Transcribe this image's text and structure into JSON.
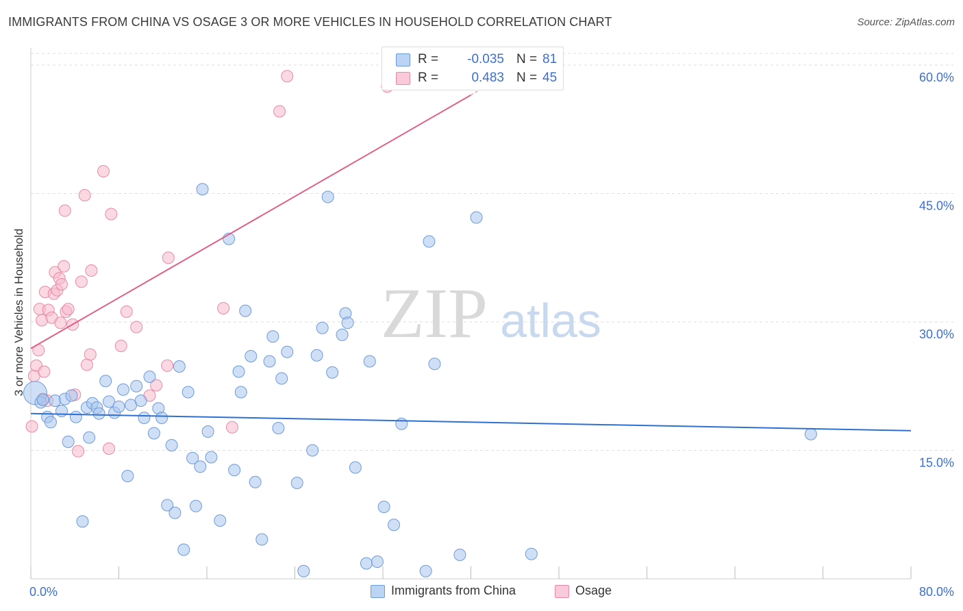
{
  "title": "IMMIGRANTS FROM CHINA VS OSAGE 3 OR MORE VEHICLES IN HOUSEHOLD CORRELATION CHART",
  "source": "Source: ZipAtlas.com",
  "watermark": {
    "zip": "ZIP",
    "atlas": "atlas"
  },
  "colors": {
    "blue_fill": "#a8c6ef",
    "blue_stroke": "#6f9ad8",
    "blue_line": "#2e6fd0",
    "pink_fill": "#f5b9cc",
    "pink_stroke": "#e98aa8",
    "pink_line": "#e0608a",
    "grid": "#dddddd",
    "tick_label": "#3b6fd0"
  },
  "legend": {
    "rows": [
      {
        "series": "Immigrants from China",
        "r_label": "R =",
        "r_value": "-0.035",
        "n_label": "N =",
        "n_value": "81"
      },
      {
        "series": "Osage",
        "r_label": "R =",
        "r_value": "0.483",
        "n_label": "N =",
        "n_value": "45"
      }
    ]
  },
  "chart_data": {
    "type": "scatter",
    "title": "IMMIGRANTS FROM CHINA VS OSAGE 3 OR MORE VEHICLES IN HOUSEHOLD CORRELATION CHART",
    "xlabel": "",
    "ylabel": "3 or more Vehicles in Household",
    "xlim": [
      0,
      80
    ],
    "ylim": [
      0,
      62
    ],
    "x_tick_labels": {
      "0": "0.0%",
      "80": "80.0%"
    },
    "y_ticks": [
      15,
      30,
      45,
      60
    ],
    "y_tick_labels": [
      "15.0%",
      "30.0%",
      "45.0%",
      "60.0%"
    ],
    "x_minor_ticks": [
      0,
      8,
      16,
      24,
      32,
      40,
      48,
      56,
      64,
      72,
      80
    ],
    "grid": true,
    "series": [
      {
        "name": "Immigrants from China",
        "color": "#a8c6ef",
        "r": -0.035,
        "n": 81,
        "trend": {
          "x": [
            0,
            80
          ],
          "y": [
            19.3,
            17.3
          ]
        },
        "points": [
          [
            0.4,
            21.7
          ],
          [
            0.9,
            20.6
          ],
          [
            1.1,
            20.9
          ],
          [
            1.5,
            18.9
          ],
          [
            1.8,
            18.3
          ],
          [
            2.2,
            20.8
          ],
          [
            2.8,
            19.6
          ],
          [
            3.1,
            21.0
          ],
          [
            3.4,
            16.0
          ],
          [
            3.7,
            21.4
          ],
          [
            4.1,
            18.9
          ],
          [
            4.7,
            6.7
          ],
          [
            5.1,
            20.0
          ],
          [
            5.3,
            16.5
          ],
          [
            5.6,
            20.5
          ],
          [
            6.0,
            20.0
          ],
          [
            6.2,
            19.3
          ],
          [
            6.8,
            23.1
          ],
          [
            7.1,
            20.7
          ],
          [
            7.6,
            19.4
          ],
          [
            8.0,
            20.1
          ],
          [
            8.4,
            22.1
          ],
          [
            8.8,
            12.0
          ],
          [
            9.1,
            20.3
          ],
          [
            9.6,
            22.5
          ],
          [
            10.0,
            20.8
          ],
          [
            10.3,
            18.8
          ],
          [
            10.8,
            23.6
          ],
          [
            11.2,
            17.0
          ],
          [
            11.6,
            19.9
          ],
          [
            11.9,
            18.8
          ],
          [
            12.4,
            8.6
          ],
          [
            12.8,
            15.6
          ],
          [
            13.1,
            7.7
          ],
          [
            13.5,
            24.8
          ],
          [
            13.9,
            3.4
          ],
          [
            14.3,
            21.8
          ],
          [
            14.7,
            14.1
          ],
          [
            15.0,
            8.5
          ],
          [
            15.4,
            13.1
          ],
          [
            15.6,
            45.5
          ],
          [
            16.1,
            17.2
          ],
          [
            16.4,
            14.2
          ],
          [
            17.2,
            6.8
          ],
          [
            18.0,
            39.7
          ],
          [
            18.5,
            12.7
          ],
          [
            18.9,
            24.2
          ],
          [
            19.1,
            21.8
          ],
          [
            19.5,
            31.3
          ],
          [
            20.0,
            26.0
          ],
          [
            20.4,
            11.3
          ],
          [
            21.0,
            4.6
          ],
          [
            21.7,
            25.4
          ],
          [
            22.0,
            28.3
          ],
          [
            22.5,
            17.6
          ],
          [
            22.8,
            23.4
          ],
          [
            23.3,
            26.5
          ],
          [
            24.2,
            11.2
          ],
          [
            24.8,
            0.9
          ],
          [
            25.6,
            15.0
          ],
          [
            26.0,
            26.1
          ],
          [
            26.5,
            29.3
          ],
          [
            27.0,
            44.6
          ],
          [
            27.4,
            24.1
          ],
          [
            28.3,
            28.5
          ],
          [
            28.6,
            31.0
          ],
          [
            28.8,
            29.9
          ],
          [
            29.5,
            13.0
          ],
          [
            30.5,
            1.8
          ],
          [
            30.8,
            25.4
          ],
          [
            31.5,
            2.0
          ],
          [
            32.1,
            8.4
          ],
          [
            33.0,
            6.3
          ],
          [
            33.7,
            18.1
          ],
          [
            35.9,
            0.9
          ],
          [
            36.2,
            39.4
          ],
          [
            36.7,
            25.1
          ],
          [
            39.0,
            2.8
          ],
          [
            40.5,
            42.2
          ],
          [
            45.5,
            2.9
          ],
          [
            70.9,
            16.9
          ]
        ]
      },
      {
        "name": "Osage",
        "color": "#f5b9cc",
        "r": 0.483,
        "n": 45,
        "trend": {
          "x": [
            0,
            40
          ],
          "y": [
            26.9,
            56.5
          ]
        },
        "trend_dashed": {
          "x": [
            40,
            42
          ],
          "y": [
            56.5,
            58.0
          ]
        },
        "points": [
          [
            0.1,
            17.8
          ],
          [
            0.3,
            23.7
          ],
          [
            0.5,
            24.9
          ],
          [
            0.7,
            26.7
          ],
          [
            0.8,
            31.5
          ],
          [
            1.0,
            30.2
          ],
          [
            1.1,
            21.0
          ],
          [
            1.2,
            24.2
          ],
          [
            1.3,
            33.5
          ],
          [
            1.5,
            20.8
          ],
          [
            1.6,
            31.4
          ],
          [
            1.9,
            30.5
          ],
          [
            2.1,
            33.3
          ],
          [
            2.2,
            35.8
          ],
          [
            2.4,
            33.7
          ],
          [
            2.6,
            35.1
          ],
          [
            2.7,
            29.9
          ],
          [
            2.8,
            34.4
          ],
          [
            3.0,
            36.5
          ],
          [
            3.1,
            43.0
          ],
          [
            3.2,
            31.2
          ],
          [
            3.4,
            31.5
          ],
          [
            3.8,
            29.7
          ],
          [
            4.0,
            21.5
          ],
          [
            4.3,
            14.9
          ],
          [
            4.6,
            34.7
          ],
          [
            4.9,
            44.8
          ],
          [
            5.1,
            25.0
          ],
          [
            5.4,
            26.2
          ],
          [
            5.5,
            36.0
          ],
          [
            6.6,
            47.6
          ],
          [
            7.1,
            15.2
          ],
          [
            7.3,
            42.6
          ],
          [
            8.2,
            27.2
          ],
          [
            8.7,
            31.2
          ],
          [
            9.6,
            29.4
          ],
          [
            10.8,
            21.4
          ],
          [
            11.4,
            22.6
          ],
          [
            12.4,
            24.9
          ],
          [
            12.5,
            37.5
          ],
          [
            17.5,
            31.6
          ],
          [
            18.3,
            17.7
          ],
          [
            22.6,
            54.6
          ],
          [
            23.3,
            58.7
          ],
          [
            32.4,
            57.5
          ]
        ]
      }
    ]
  }
}
